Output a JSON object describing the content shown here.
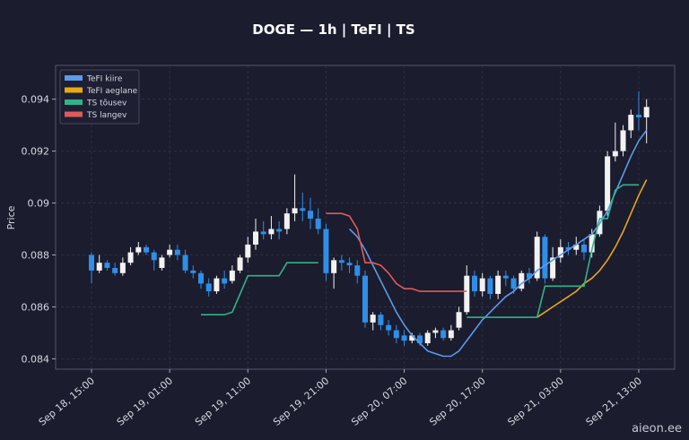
{
  "chart_data": {
    "type": "candlestick",
    "title": "DOGE — 1h  |  TeFI  |  TS",
    "ylabel": "Price",
    "watermark": "aieon.ee",
    "categories": [
      "Sep 18, 15:00",
      null,
      null,
      null,
      null,
      null,
      null,
      null,
      null,
      null,
      "Sep 19, 01:00",
      null,
      null,
      null,
      null,
      null,
      null,
      null,
      null,
      null,
      "Sep 19, 11:00",
      null,
      null,
      null,
      null,
      null,
      null,
      null,
      null,
      null,
      "Sep 19, 21:00",
      null,
      null,
      null,
      null,
      null,
      null,
      null,
      null,
      null,
      "Sep 20, 07:00",
      null,
      null,
      null,
      null,
      null,
      null,
      null,
      null,
      null,
      "Sep 20, 17:00",
      null,
      null,
      null,
      null,
      null,
      null,
      null,
      null,
      null,
      "Sep 21, 03:00",
      null,
      null,
      null,
      null,
      null,
      null,
      null,
      null,
      null,
      "Sep 21, 13:00",
      null
    ],
    "open": [
      0.088,
      0.0874,
      0.0877,
      0.0875,
      0.0873,
      0.0877,
      0.0881,
      0.0883,
      0.0881,
      0.0875,
      0.088,
      0.0882,
      0.088,
      0.0874,
      0.0873,
      0.0869,
      0.0866,
      0.0871,
      0.087,
      0.0874,
      0.0879,
      0.0884,
      0.0889,
      0.0888,
      0.089,
      0.089,
      0.0896,
      0.0898,
      0.0897,
      0.0894,
      0.089,
      0.0873,
      0.0878,
      0.0877,
      0.0876,
      0.0872,
      0.0854,
      0.0857,
      0.0853,
      0.0851,
      0.0849,
      0.0847,
      0.0849,
      0.0846,
      0.085,
      0.0851,
      0.0848,
      0.0852,
      0.0858,
      0.0872,
      0.0866,
      0.0871,
      0.0865,
      0.0872,
      0.0871,
      0.0867,
      0.0873,
      0.0871,
      0.0887,
      0.0871,
      0.0879,
      0.0883,
      0.0882,
      0.0884,
      0.0881,
      0.0888,
      0.0897,
      0.0918,
      0.092,
      0.0928,
      0.0934,
      0.0933
    ],
    "high": [
      0.0881,
      0.088,
      0.0878,
      0.0877,
      0.0879,
      0.0883,
      0.0885,
      0.0884,
      0.0882,
      0.088,
      0.0884,
      0.0884,
      0.0882,
      0.0876,
      0.0874,
      0.0871,
      0.0872,
      0.0874,
      0.0876,
      0.088,
      0.0887,
      0.0894,
      0.0893,
      0.0895,
      0.0893,
      0.0898,
      0.0911,
      0.0904,
      0.0902,
      0.0898,
      0.0892,
      0.0879,
      0.088,
      0.0879,
      0.0878,
      0.0874,
      0.0858,
      0.0858,
      0.0855,
      0.0853,
      0.0851,
      0.085,
      0.085,
      0.0851,
      0.0852,
      0.0852,
      0.0853,
      0.086,
      0.0876,
      0.0874,
      0.0873,
      0.0872,
      0.0874,
      0.0874,
      0.0872,
      0.0874,
      0.0875,
      0.0889,
      0.0888,
      0.0883,
      0.0886,
      0.0885,
      0.0887,
      0.0886,
      0.089,
      0.0899,
      0.092,
      0.0931,
      0.093,
      0.0936,
      0.0943,
      0.094
    ],
    "low": [
      0.0869,
      0.0873,
      0.0874,
      0.0872,
      0.0872,
      0.0876,
      0.088,
      0.088,
      0.0874,
      0.0874,
      0.0879,
      0.0878,
      0.0873,
      0.0871,
      0.0867,
      0.0864,
      0.0865,
      0.0867,
      0.0869,
      0.0873,
      0.0877,
      0.0882,
      0.0886,
      0.0886,
      0.0886,
      0.0888,
      0.0893,
      0.0893,
      0.089,
      0.0888,
      0.087,
      0.0867,
      0.0874,
      0.0873,
      0.0869,
      0.0852,
      0.0851,
      0.0851,
      0.0849,
      0.0846,
      0.0845,
      0.0846,
      0.0845,
      0.0845,
      0.0848,
      0.0847,
      0.0847,
      0.0851,
      0.0857,
      0.0864,
      0.0864,
      0.0863,
      0.0863,
      0.0868,
      0.0865,
      0.0866,
      0.0869,
      0.087,
      0.0869,
      0.087,
      0.0877,
      0.088,
      0.088,
      0.0878,
      0.0879,
      0.0887,
      0.0895,
      0.0916,
      0.0918,
      0.0925,
      0.0928,
      0.0923
    ],
    "close": [
      0.0874,
      0.0877,
      0.0875,
      0.0873,
      0.0877,
      0.0881,
      0.0883,
      0.0881,
      0.0878,
      0.0879,
      0.0882,
      0.088,
      0.0874,
      0.0873,
      0.0869,
      0.0866,
      0.0871,
      0.0869,
      0.0874,
      0.0879,
      0.0884,
      0.0889,
      0.0888,
      0.089,
      0.0889,
      0.0896,
      0.0898,
      0.0897,
      0.0894,
      0.089,
      0.0873,
      0.0878,
      0.0877,
      0.0876,
      0.0872,
      0.0854,
      0.0857,
      0.0853,
      0.0851,
      0.0848,
      0.0847,
      0.0849,
      0.0846,
      0.085,
      0.0851,
      0.0848,
      0.0851,
      0.0858,
      0.0872,
      0.0866,
      0.0871,
      0.0865,
      0.0872,
      0.0871,
      0.0867,
      0.0873,
      0.0871,
      0.0887,
      0.0871,
      0.0879,
      0.0883,
      0.0882,
      0.0884,
      0.0881,
      0.0888,
      0.0897,
      0.0918,
      0.092,
      0.0928,
      0.0934,
      0.0933,
      0.0937
    ],
    "up_color": "#f2f2f2",
    "down_color": "#2f8fe8",
    "series": [
      {
        "name": "TeFI kiire",
        "color": "#5b9be8",
        "values": [
          null,
          null,
          null,
          null,
          null,
          null,
          null,
          null,
          null,
          null,
          null,
          null,
          null,
          null,
          null,
          null,
          null,
          null,
          null,
          null,
          null,
          null,
          null,
          null,
          null,
          null,
          null,
          null,
          null,
          null,
          null,
          null,
          null,
          0.089,
          0.0887,
          0.0882,
          0.0876,
          0.087,
          0.0864,
          0.0858,
          0.0853,
          0.0849,
          0.0846,
          0.0843,
          0.0842,
          0.0841,
          0.0841,
          0.0843,
          0.0847,
          0.0851,
          0.0855,
          0.0858,
          0.0861,
          0.0864,
          0.0866,
          0.0869,
          0.0871,
          0.0874,
          0.0876,
          0.0878,
          0.088,
          0.0882,
          0.0884,
          0.0886,
          0.0888,
          0.0892,
          0.0897,
          0.0904,
          0.0911,
          0.0918,
          0.0924,
          0.0928
        ]
      },
      {
        "name": "TeFI aeglane",
        "color": "#e6a817",
        "values": [
          null,
          null,
          null,
          null,
          null,
          null,
          null,
          null,
          null,
          null,
          null,
          null,
          null,
          null,
          null,
          null,
          null,
          null,
          null,
          null,
          null,
          null,
          null,
          null,
          null,
          null,
          null,
          null,
          null,
          null,
          null,
          null,
          null,
          null,
          null,
          null,
          null,
          null,
          null,
          null,
          null,
          null,
          null,
          null,
          null,
          null,
          null,
          null,
          null,
          null,
          null,
          null,
          null,
          null,
          null,
          null,
          null,
          0.0856,
          0.0858,
          0.086,
          0.0862,
          0.0864,
          0.0866,
          0.0869,
          0.0871,
          0.0874,
          0.0878,
          0.0883,
          0.0889,
          0.0896,
          0.0903,
          0.0909
        ]
      },
      {
        "name": "TS tõusev",
        "color": "#2fb38a",
        "values": [
          null,
          null,
          null,
          null,
          null,
          null,
          null,
          null,
          null,
          null,
          null,
          null,
          null,
          null,
          0.0857,
          0.0857,
          0.0857,
          0.0857,
          0.0858,
          0.0865,
          0.0872,
          0.0872,
          0.0872,
          0.0872,
          0.0872,
          0.0877,
          0.0877,
          0.0877,
          0.0877,
          0.0877,
          null,
          null,
          null,
          null,
          null,
          null,
          null,
          null,
          null,
          null,
          null,
          null,
          null,
          null,
          null,
          null,
          null,
          null,
          0.0856,
          0.0856,
          0.0856,
          0.0856,
          0.0856,
          0.0856,
          0.0856,
          0.0856,
          0.0856,
          0.0856,
          0.0868,
          0.0868,
          0.0868,
          0.0868,
          0.0868,
          0.0868,
          0.0882,
          0.0894,
          0.0894,
          0.0905,
          0.0907,
          0.0907,
          0.0907,
          null
        ]
      },
      {
        "name": "TS langev",
        "color": "#e05a5a",
        "values": [
          null,
          null,
          null,
          null,
          null,
          null,
          null,
          null,
          null,
          null,
          null,
          null,
          null,
          null,
          null,
          null,
          null,
          null,
          null,
          null,
          null,
          null,
          null,
          null,
          null,
          null,
          null,
          null,
          null,
          null,
          0.0896,
          0.0896,
          0.0896,
          0.0895,
          0.089,
          0.0877,
          0.0877,
          0.0876,
          0.0873,
          0.0869,
          0.0867,
          0.0867,
          0.0866,
          0.0866,
          0.0866,
          0.0866,
          0.0866,
          0.0866,
          0.0866,
          null,
          null,
          null,
          null,
          null,
          null,
          null,
          null,
          null,
          null,
          null,
          null,
          null,
          null,
          null,
          null,
          null,
          null,
          null,
          null,
          null,
          null,
          null
        ]
      }
    ],
    "ylim": [
      0.0836,
      0.0953
    ],
    "yticks": [
      0.084,
      0.086,
      0.088,
      0.09,
      0.092,
      0.094
    ],
    "grid": true,
    "legend": "upper-left"
  }
}
